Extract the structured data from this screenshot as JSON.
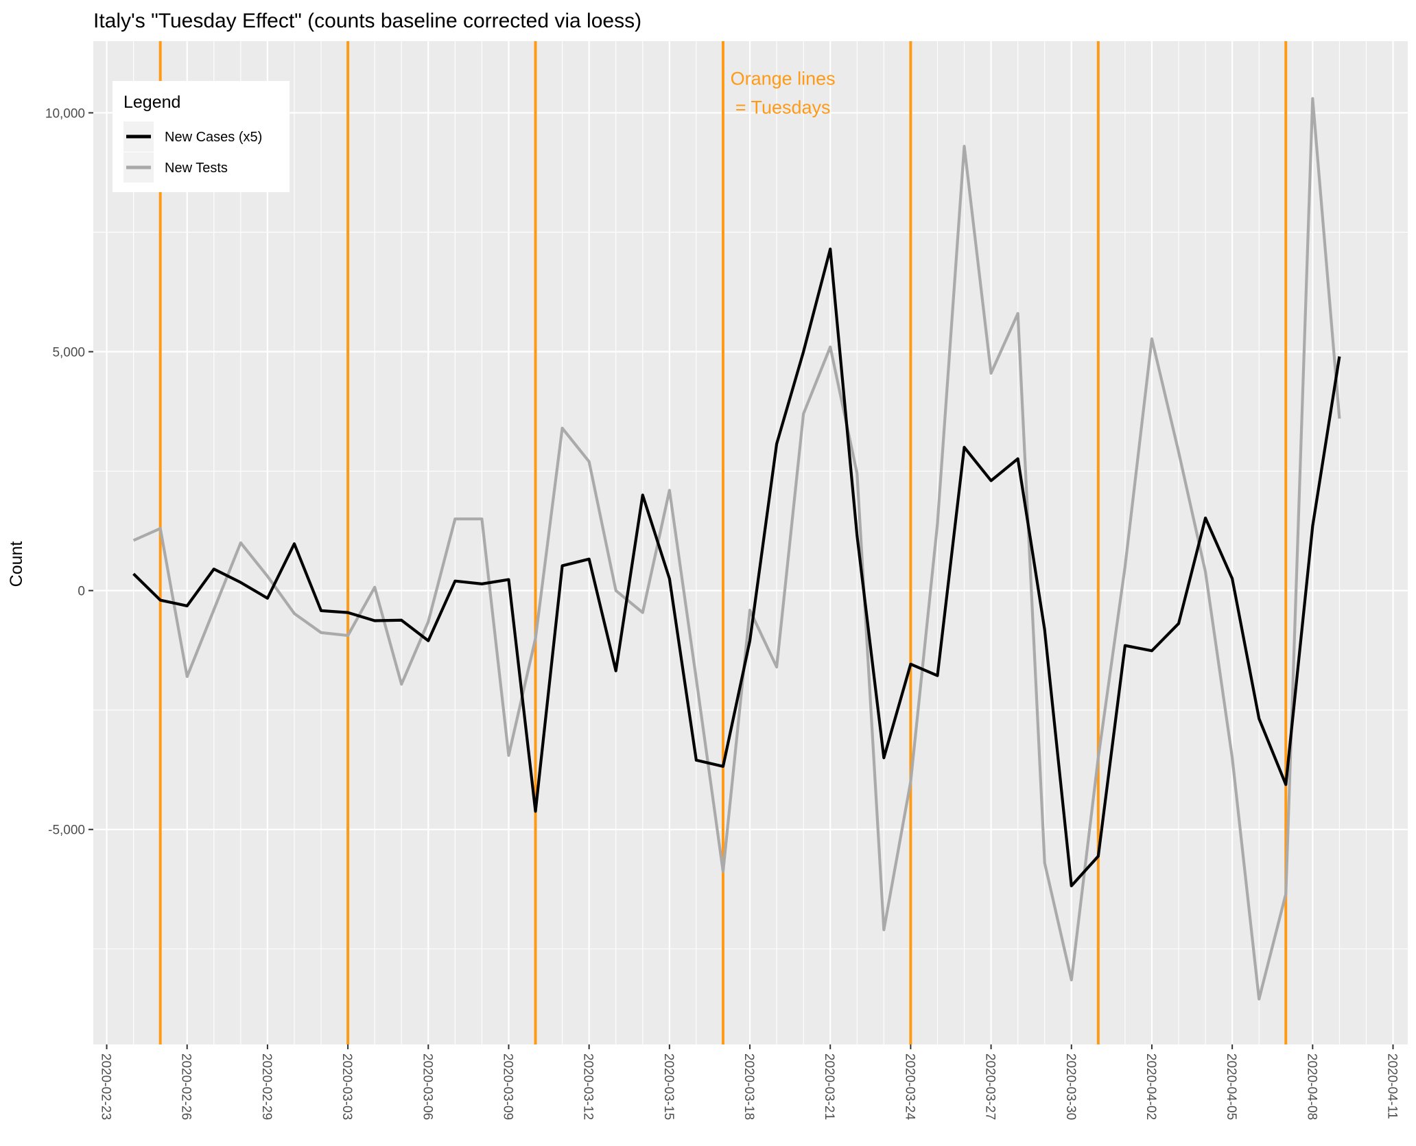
{
  "chart_data": {
    "type": "line",
    "title": "Italy's \"Tuesday Effect\" (counts baseline corrected via loess)",
    "xlabel": "",
    "ylabel": "Count",
    "x_start": "2020-02-24",
    "x_tick_labels": [
      "2020-02-23",
      "2020-02-26",
      "2020-02-29",
      "2020-03-03",
      "2020-03-06",
      "2020-03-09",
      "2020-03-12",
      "2020-03-15",
      "2020-03-18",
      "2020-03-21",
      "2020-03-24",
      "2020-03-27",
      "2020-03-30",
      "2020-04-02",
      "2020-04-05",
      "2020-04-08",
      "2020-04-11"
    ],
    "y_tick_labels": [
      "-5,000",
      "0",
      "5,000",
      "10,000"
    ],
    "y_ticks": [
      -5000,
      0,
      5000,
      10000
    ],
    "xlim": [
      "2020-02-23",
      "2020-04-11"
    ],
    "ylim": [
      -9500,
      11500
    ],
    "grid": true,
    "legend": {
      "title": "Legend",
      "position": "top-left",
      "entries": [
        "New Cases (x5)",
        "New Tests"
      ]
    },
    "annotation": {
      "line1": "Orange lines",
      "line2": "= Tuesdays",
      "x": "2020-03-20",
      "y": 10500
    },
    "vlines": [
      "2020-02-25",
      "2020-03-03",
      "2020-03-10",
      "2020-03-17",
      "2020-03-24",
      "2020-03-31",
      "2020-04-07"
    ],
    "colors": {
      "cases": "#000000",
      "tests": "#AAAAAA",
      "vline": "#FF9A17",
      "panel": "#EBEBEB",
      "grid": "#FFFFFF"
    },
    "series": [
      {
        "name": "New Cases (x5)",
        "values": [
          350,
          -200,
          -320,
          450,
          170,
          -160,
          980,
          -420,
          -460,
          -630,
          -620,
          -1050,
          200,
          140,
          230,
          -4620,
          520,
          660,
          -1680,
          2000,
          250,
          -3550,
          -3680,
          -1050,
          3070,
          5000,
          7150,
          1150,
          -3500,
          -1540,
          -1780,
          3000,
          2300,
          2760,
          -820,
          -6180,
          -5560,
          -1150,
          -1260,
          -690,
          1520,
          250,
          -2680,
          -4060,
          1350,
          4900
        ]
      },
      {
        "name": "New Tests",
        "values": [
          1050,
          1300,
          -1800,
          -400,
          1000,
          300,
          -480,
          -880,
          -940,
          70,
          -1960,
          -650,
          1500,
          1500,
          -3450,
          -1000,
          3400,
          2700,
          0,
          -460,
          2100,
          -1850,
          -5880,
          -410,
          -1600,
          3700,
          5100,
          2450,
          -7100,
          -4000,
          1400,
          9300,
          4550,
          5800,
          -5700,
          -8150,
          -3500,
          500,
          5270,
          2900,
          390,
          -3500,
          -8550,
          -6350,
          10300,
          3600
        ]
      }
    ]
  }
}
